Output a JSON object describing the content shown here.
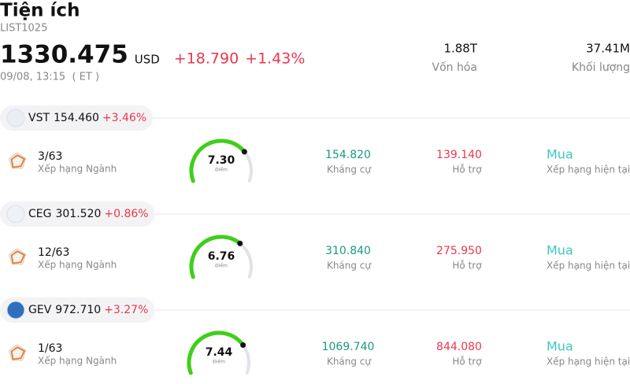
{
  "header": {
    "title": "Tiện ích",
    "code": "LIST1025",
    "price": "1330.475",
    "currency": "USD",
    "change": "+18.790",
    "change_pct": "+1.43%",
    "datetime": "09/08, 13:15  ( ET )",
    "stats": [
      {
        "value": "1.88T",
        "label": "Vốn hóa"
      },
      {
        "value": "37.41M",
        "label": "Khối lượng"
      }
    ]
  },
  "gauge_lim": [
    0,
    10
  ],
  "stocks": [
    {
      "ticker": "VST",
      "price": "154.460",
      "change": "+3.46%",
      "rank": "3/63",
      "rank_label": "Xếp hạng Ngành",
      "score": {
        "value": 7.3,
        "label": "7.30"
      },
      "score_label": "Điểm",
      "resistance": "154.820",
      "resistance_label": "Kháng cự",
      "support": "139.140",
      "support_label": "Hỗ trợ",
      "rating": "Mua",
      "rating_label": "Xếp hạng hiện tại"
    },
    {
      "ticker": "CEG",
      "price": "301.520",
      "change": "+0.86%",
      "rank": "12/63",
      "rank_label": "Xếp hạng Ngành",
      "score": {
        "value": 6.76,
        "label": "6.76"
      },
      "score_label": "Điểm",
      "resistance": "310.840",
      "resistance_label": "Kháng cự",
      "support": "275.950",
      "support_label": "Hỗ trợ",
      "rating": "Mua",
      "rating_label": "Xếp hạng hiện tại"
    },
    {
      "ticker": "GEV",
      "price": "972.710",
      "change": "+3.27%",
      "rank": "1/63",
      "rank_label": "Xếp hạng Ngành",
      "score": {
        "value": 7.44,
        "label": "7.44"
      },
      "score_label": "Điểm",
      "resistance": "1069.740",
      "resistance_label": "Kháng cự",
      "support": "844.080",
      "support_label": "Hỗ trợ",
      "rating": "Mua",
      "rating_label": "Xếp hạng hiện tại"
    }
  ]
}
